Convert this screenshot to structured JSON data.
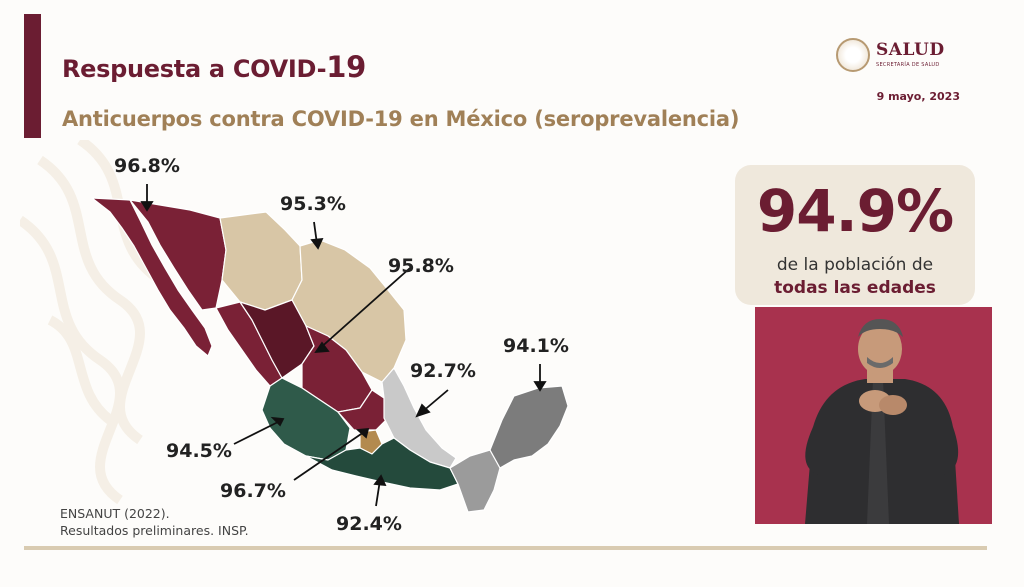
{
  "header": {
    "title_main": "Respuesta a COVID-",
    "title_num": "19",
    "subtitle": "Anticuerpos contra COVID-19 en México (seroprevalencia)",
    "date": "9 mayo, 2023"
  },
  "logo": {
    "name": "SALUD",
    "sub": "SECRETARÍA DE SALUD"
  },
  "map": {
    "labels": [
      "96.8%",
      "95.3%",
      "95.8%",
      "92.7%",
      "94.1%",
      "94.5%",
      "96.7%",
      "92.4%"
    ],
    "colors": {
      "maroon": "#7a2136",
      "tan": "#d8c6a6",
      "green": "#2f5a4a",
      "light_gray": "#c9c9c9",
      "dark_gray": "#7c7c7c",
      "gold": "#b38a4f"
    }
  },
  "stat": {
    "value": "94.9%",
    "line1": "de la población de",
    "line2": "todas las edades"
  },
  "source": {
    "line1": "ENSANUT (2022).",
    "line2": "Resultados preliminares. INSP."
  }
}
